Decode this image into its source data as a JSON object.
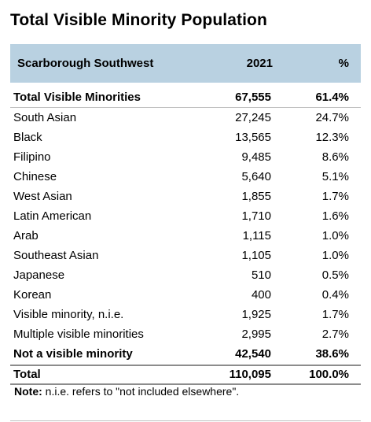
{
  "title": "Total Visible Minority Population",
  "table": {
    "headers": {
      "geography": "Scarborough Southwest",
      "year": "2021",
      "percent": "%"
    },
    "rows": [
      {
        "name": "Total Visible Minorities",
        "count": "67,555",
        "pct": "61.4%",
        "bold": true
      },
      {
        "name": "South Asian",
        "count": "27,245",
        "pct": "24.7%"
      },
      {
        "name": "Black",
        "count": "13,565",
        "pct": "12.3%"
      },
      {
        "name": "Filipino",
        "count": "9,485",
        "pct": "8.6%"
      },
      {
        "name": "Chinese",
        "count": "5,640",
        "pct": "5.1%"
      },
      {
        "name": "West Asian",
        "count": "1,855",
        "pct": "1.7%"
      },
      {
        "name": "Latin American",
        "count": "1,710",
        "pct": "1.6%"
      },
      {
        "name": "Arab",
        "count": "1,115",
        "pct": "1.0%"
      },
      {
        "name": "Southeast Asian",
        "count": "1,105",
        "pct": "1.0%"
      },
      {
        "name": "Japanese",
        "count": "510",
        "pct": "0.5%"
      },
      {
        "name": "Korean",
        "count": "400",
        "pct": "0.4%"
      },
      {
        "name": "Visible minority, n.i.e.",
        "count": "1,925",
        "pct": "1.7%"
      },
      {
        "name": "Multiple visible minorities",
        "count": "2,995",
        "pct": "2.7%"
      },
      {
        "name": "Not a visible minority",
        "count": "42,540",
        "pct": "38.6%",
        "bold": true
      }
    ],
    "total": {
      "name": "Total",
      "count": "110,095",
      "pct": "100.0%"
    }
  },
  "note": {
    "label": "Note:",
    "text": " n.i.e. refers to \"not included elsewhere\"."
  },
  "colors": {
    "header_background": "#b9d1e1"
  }
}
